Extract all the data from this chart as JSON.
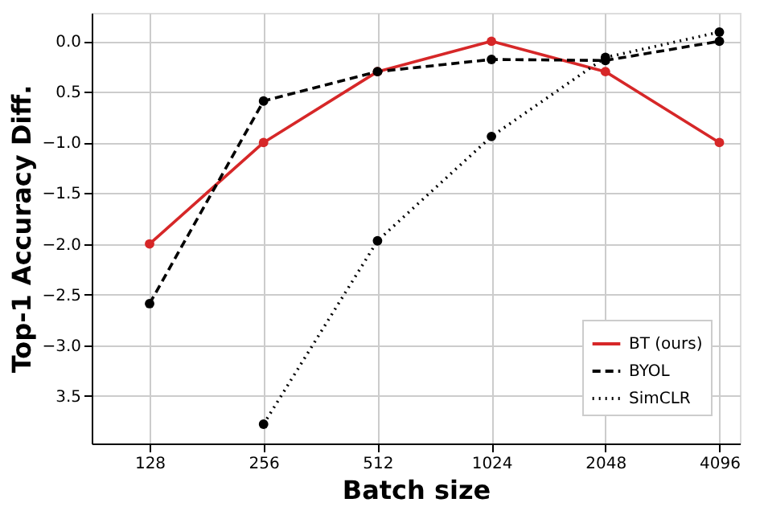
{
  "chart_data": {
    "type": "line",
    "xlabel": "Batch size",
    "ylabel": "Top-1 Accuracy Diff.",
    "x": [
      128,
      256,
      512,
      1024,
      2048,
      4096
    ],
    "log": "x",
    "xlim": [
      90,
      4640
    ],
    "xticks": [
      128,
      256,
      512,
      1024,
      2048,
      4096
    ],
    "ylim": [
      -3.97,
      0.28
    ],
    "yticks": [
      {
        "value": 0,
        "label": "0.0"
      },
      {
        "value": -0.5,
        "label": "0.5"
      },
      {
        "value": -1,
        "label": "−1.0"
      },
      {
        "value": -1.5,
        "label": "−1.5"
      },
      {
        "value": -2,
        "label": "−2.0"
      },
      {
        "value": -2.5,
        "label": "−2.5"
      },
      {
        "value": -3,
        "label": "−3.0"
      },
      {
        "value": -3.5,
        "label": "3.5"
      }
    ],
    "grid": true,
    "legend": "bottom right",
    "marker": "circle",
    "series": [
      {
        "name": "BT (ours)",
        "color": "#d62728",
        "line_style": "solid",
        "values": [
          -2.0,
          -1.0,
          -0.3,
          0.0,
          -0.3,
          -1.0
        ]
      },
      {
        "name": "BYOL",
        "color": "#000000",
        "line_style": "dashed",
        "values": [
          -2.59,
          -0.59,
          -0.3,
          -0.18,
          -0.19,
          0.0
        ]
      },
      {
        "name": "SimCLR",
        "color": "#000000",
        "line_style": "dotted",
        "values": [
          null,
          -3.78,
          -1.97,
          -0.94,
          -0.16,
          0.09
        ]
      }
    ]
  }
}
